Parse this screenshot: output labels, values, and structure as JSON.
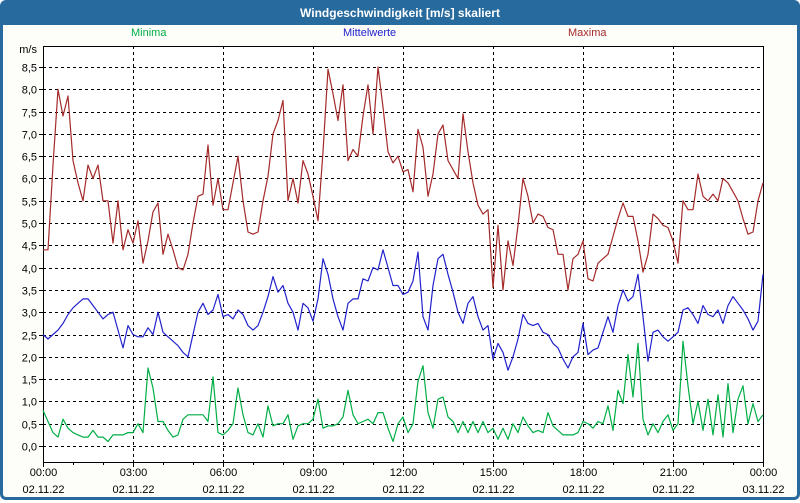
{
  "window": {
    "title": "Windgeschwindigkeit [m/s] skaliert"
  },
  "colors": {
    "frame_blue": "#276a9e",
    "panel_background": "#fdfdfa",
    "plot_background": "#ffffff",
    "axis_black": "#000000",
    "minima_green": "#00ae45",
    "mittelwerte_blue": "#2222cc",
    "maxima_red": "#a52a2a"
  },
  "chart_data": {
    "type": "line",
    "title": "Windgeschwindigkeit [m/s] skaliert",
    "ylabel": "m/s",
    "ylim": [
      -0.4,
      9.0
    ],
    "y_tick_step": 0.5,
    "grid": true,
    "legend_position": "top",
    "x_start": "02.11.22 00:00",
    "x_end": "03.11.22 00:00",
    "x_interval_minutes": 10,
    "x_ticks": [
      {
        "time": "00:00",
        "date": "02.11.22"
      },
      {
        "time": "03:00",
        "date": "02.11.22"
      },
      {
        "time": "06:00",
        "date": "02.11.22"
      },
      {
        "time": "09:00",
        "date": "02.11.22"
      },
      {
        "time": "12:00",
        "date": "02.11.22"
      },
      {
        "time": "15:00",
        "date": "02.11.22"
      },
      {
        "time": "18:00",
        "date": "02.11.22"
      },
      {
        "time": "21:00",
        "date": "02.11.22"
      },
      {
        "time": "00:00",
        "date": "03.11.22"
      }
    ],
    "y_ticks": [
      {
        "value": 8.5,
        "label": "8,5"
      },
      {
        "value": 8.0,
        "label": "8,0"
      },
      {
        "value": 7.5,
        "label": "7,5"
      },
      {
        "value": 7.0,
        "label": "7,0"
      },
      {
        "value": 6.5,
        "label": "6,5"
      },
      {
        "value": 6.0,
        "label": "6,0"
      },
      {
        "value": 5.5,
        "label": "5,5"
      },
      {
        "value": 5.0,
        "label": "5,0"
      },
      {
        "value": 4.5,
        "label": "4,5"
      },
      {
        "value": 4.0,
        "label": "4,0"
      },
      {
        "value": 3.5,
        "label": "3,5"
      },
      {
        "value": 3.0,
        "label": "3,0"
      },
      {
        "value": 2.5,
        "label": "2,5"
      },
      {
        "value": 2.0,
        "label": "2,0"
      },
      {
        "value": 1.5,
        "label": "1,5"
      },
      {
        "value": 1.0,
        "label": "1,0"
      },
      {
        "value": 0.5,
        "label": "0,5"
      },
      {
        "value": 0.0,
        "label": "0,0"
      }
    ],
    "series": [
      {
        "name": "Minima",
        "color": "#00ae45",
        "values": [
          0.8,
          0.55,
          0.3,
          0.2,
          0.6,
          0.4,
          0.3,
          0.25,
          0.2,
          0.2,
          0.35,
          0.2,
          0.2,
          0.1,
          0.25,
          0.25,
          0.25,
          0.3,
          0.3,
          0.5,
          0.3,
          1.75,
          1.3,
          0.55,
          0.55,
          0.35,
          0.2,
          0.25,
          0.6,
          0.7,
          0.7,
          0.7,
          0.7,
          0.55,
          1.55,
          0.3,
          0.25,
          0.35,
          0.5,
          1.3,
          0.7,
          0.3,
          0.25,
          0.5,
          0.2,
          0.9,
          0.45,
          0.5,
          0.5,
          0.7,
          0.15,
          0.45,
          0.5,
          0.5,
          0.6,
          1.05,
          0.4,
          0.45,
          0.45,
          0.5,
          0.65,
          1.25,
          0.7,
          0.5,
          0.55,
          0.6,
          0.5,
          0.75,
          0.75,
          0.4,
          0.1,
          0.5,
          0.65,
          0.3,
          0.5,
          1.45,
          1.8,
          0.75,
          0.4,
          1.05,
          1.1,
          0.65,
          0.55,
          0.3,
          0.55,
          0.3,
          0.55,
          0.3,
          0.55,
          0.3,
          0.4,
          0.15,
          0.4,
          0.15,
          0.5,
          0.3,
          0.65,
          0.45,
          0.3,
          0.35,
          0.3,
          0.75,
          0.45,
          0.35,
          0.25,
          0.25,
          0.25,
          0.3,
          0.55,
          0.5,
          0.4,
          0.55,
          0.5,
          0.9,
          0.35,
          1.25,
          0.95,
          2.05,
          1.1,
          2.3,
          0.6,
          0.25,
          0.5,
          0.3,
          0.55,
          0.7,
          0.35,
          0.5,
          2.35,
          1.35,
          0.5,
          1.0,
          0.35,
          1.05,
          0.25,
          1.15,
          0.2,
          1.4,
          0.3,
          1.05,
          1.35,
          0.5,
          0.95,
          0.55,
          0.7
        ]
      },
      {
        "name": "Mittelwerte",
        "color": "#2222cc",
        "values": [
          2.5,
          2.4,
          2.5,
          2.6,
          2.75,
          2.95,
          3.1,
          3.2,
          3.3,
          3.3,
          3.15,
          3.0,
          2.85,
          2.95,
          3.0,
          2.6,
          2.2,
          2.7,
          2.5,
          2.45,
          2.45,
          2.65,
          2.5,
          3.0,
          2.55,
          2.45,
          2.35,
          2.25,
          2.1,
          2.0,
          2.5,
          3.0,
          3.2,
          2.95,
          3.05,
          3.4,
          2.9,
          2.95,
          2.85,
          3.05,
          2.95,
          2.7,
          2.6,
          2.7,
          3.0,
          3.35,
          3.8,
          3.45,
          3.6,
          3.2,
          3.0,
          2.6,
          3.2,
          3.1,
          2.8,
          3.3,
          4.2,
          3.85,
          3.3,
          2.9,
          2.6,
          3.2,
          3.3,
          3.3,
          3.75,
          3.7,
          4.0,
          3.95,
          4.4,
          4.0,
          3.6,
          3.6,
          3.4,
          3.45,
          3.7,
          4.35,
          2.9,
          2.6,
          3.6,
          4.2,
          4.3,
          3.85,
          3.45,
          3.0,
          2.75,
          3.2,
          3.35,
          2.9,
          2.6,
          2.7,
          1.95,
          2.3,
          2.1,
          1.7,
          2.0,
          2.4,
          2.95,
          2.75,
          2.7,
          2.75,
          2.55,
          2.5,
          2.3,
          2.2,
          1.95,
          1.75,
          2.0,
          2.1,
          2.75,
          2.05,
          2.15,
          2.2,
          2.55,
          2.9,
          2.55,
          3.15,
          3.5,
          3.25,
          3.35,
          3.85,
          2.9,
          1.9,
          2.55,
          2.6,
          2.45,
          2.35,
          2.45,
          2.55,
          3.05,
          3.1,
          2.95,
          2.75,
          3.15,
          2.95,
          2.9,
          3.05,
          2.75,
          3.15,
          3.35,
          3.2,
          3.05,
          2.85,
          2.6,
          2.8,
          3.85
        ]
      },
      {
        "name": "Maxima",
        "color": "#a52a2a",
        "values": [
          4.4,
          4.4,
          6.3,
          8.0,
          7.4,
          7.85,
          6.4,
          5.9,
          5.5,
          6.3,
          6.0,
          6.3,
          5.5,
          5.5,
          4.55,
          5.5,
          4.4,
          4.85,
          4.55,
          5.05,
          4.1,
          4.6,
          5.25,
          5.45,
          4.3,
          4.75,
          4.4,
          4.0,
          3.95,
          4.3,
          5.0,
          5.6,
          5.65,
          6.75,
          5.4,
          6.0,
          5.3,
          5.3,
          5.9,
          6.5,
          5.5,
          4.8,
          4.75,
          4.8,
          5.5,
          6.05,
          7.0,
          7.3,
          7.75,
          5.5,
          6.0,
          5.45,
          6.4,
          6.1,
          5.6,
          5.05,
          6.6,
          8.45,
          7.9,
          7.3,
          8.1,
          6.4,
          6.65,
          6.5,
          7.4,
          8.1,
          7.0,
          8.5,
          7.6,
          6.6,
          6.35,
          6.5,
          6.15,
          6.2,
          5.7,
          7.1,
          6.7,
          5.6,
          6.1,
          7.0,
          7.2,
          6.4,
          6.2,
          6.0,
          7.45,
          6.6,
          5.9,
          5.4,
          5.2,
          5.3,
          3.55,
          4.95,
          3.5,
          4.6,
          4.05,
          4.95,
          6.0,
          5.6,
          5.0,
          5.2,
          5.15,
          4.9,
          4.85,
          4.3,
          4.3,
          3.5,
          4.2,
          4.3,
          4.6,
          3.75,
          3.7,
          4.1,
          4.2,
          4.3,
          4.7,
          5.1,
          5.45,
          5.15,
          5.15,
          4.6,
          3.9,
          4.3,
          5.2,
          5.1,
          4.95,
          4.9,
          4.6,
          4.1,
          5.5,
          5.3,
          5.3,
          6.1,
          5.6,
          5.5,
          5.65,
          5.5,
          6.0,
          5.9,
          5.7,
          5.5,
          5.1,
          4.75,
          4.8,
          5.5,
          5.9
        ]
      }
    ]
  }
}
